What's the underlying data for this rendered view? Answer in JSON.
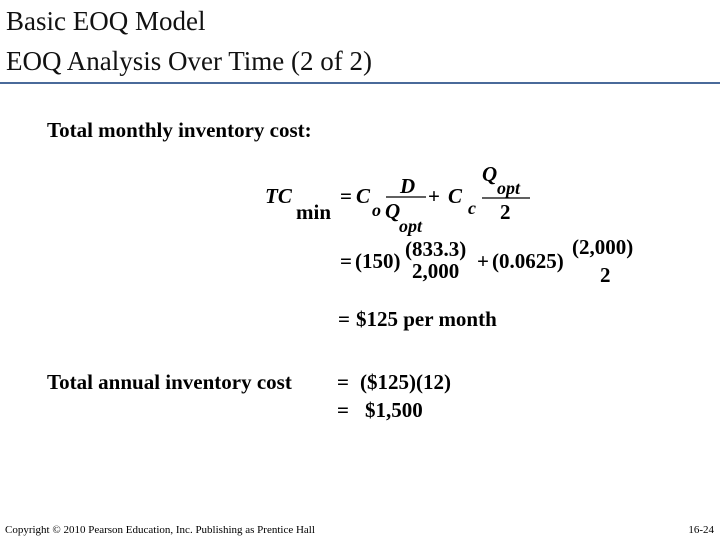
{
  "header": {
    "title_line1": "Basic EOQ Model",
    "title_line2": "EOQ Analysis Over Time (2 of 2)"
  },
  "body": {
    "monthly_label": "Total monthly inventory cost:",
    "formula": {
      "lhs": "TC",
      "lhs_sub": "min",
      "eq": "=",
      "c1": "C",
      "c1_sub": "o",
      "num1": "D",
      "den1": "Q",
      "den1_sub": "opt",
      "plus": "+",
      "c2": "C",
      "c2_sub": "c",
      "num2": "Q",
      "num2_sub": "opt",
      "den2": "2"
    },
    "substitution": {
      "eq": "=",
      "c1": "(150)",
      "num1": "(833.3)",
      "den1": "2,000",
      "plus": "+",
      "c2": "(0.0625)",
      "num2": "(2,000)",
      "den2": "2"
    },
    "monthly_result": {
      "eq": "=",
      "value": "$125 per month"
    },
    "annual_label": "Total annual inventory cost",
    "annual_lines": [
      {
        "eq": "=",
        "text": "($125)(12)"
      },
      {
        "eq": "=",
        "text": "$1,500"
      }
    ]
  },
  "footer": {
    "copyright": "Copyright © 2010 Pearson Education, Inc. Publishing as Prentice Hall",
    "page": "16-24"
  }
}
